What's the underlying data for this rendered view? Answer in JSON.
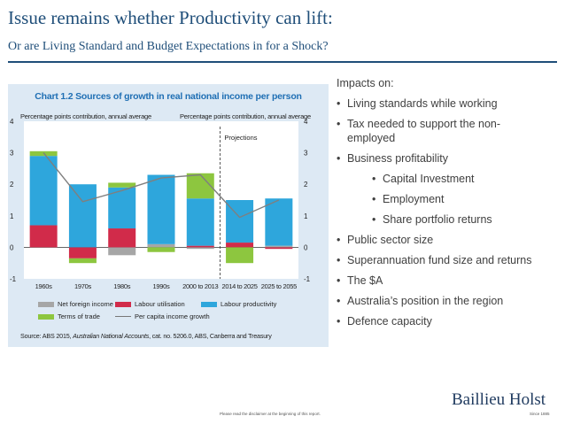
{
  "slide": {
    "title": "Issue remains whether Productivity can lift:",
    "subtitle": "Or are Living Standard and Budget Expectations in for a Shock?",
    "footer_note": "Please read the disclaimer at the beginning of this report.",
    "logo_text": "Baillieu Holst",
    "logo_since": "Since 1885"
  },
  "impacts": {
    "heading": "Impacts on:",
    "items": [
      {
        "text": "Living standards while working",
        "level": 1
      },
      {
        "text": "Tax needed to support the non-",
        "level": 1
      },
      {
        "text": "employed",
        "level": 1,
        "continuation": true
      },
      {
        "text": "Business profitability",
        "level": 1
      },
      {
        "text": "Capital Investment",
        "level": 2
      },
      {
        "text": "Employment",
        "level": 2
      },
      {
        "text": "Share portfolio returns",
        "level": 2
      },
      {
        "text": "Public sector size",
        "level": 1
      },
      {
        "text": "Superannuation fund size and returns",
        "level": 1
      },
      {
        "text": "The $A",
        "level": 1
      },
      {
        "text": "Australia’s position in the region",
        "level": 1
      },
      {
        "text": "Defence capacity",
        "level": 1
      }
    ]
  },
  "chart_data": {
    "type": "bar",
    "stacked": true,
    "title": "Chart 1.2 Sources of growth in real national income per person",
    "ylabel_left": "Percentage points contribution, annual average",
    "ylabel_right": "Percentage points contribution, annual average",
    "annotation": "Projections",
    "ylim": [
      -1,
      4
    ],
    "yticks": [
      -1,
      0,
      1,
      2,
      3,
      4
    ],
    "categories": [
      "1960s",
      "1970s",
      "1980s",
      "1990s",
      "2000 to 2013",
      "2014 to 2025",
      "2025 to 2055"
    ],
    "series": [
      {
        "name": "Net foreign income",
        "color": "#a6a6a6",
        "values": [
          0.0,
          0.0,
          -0.25,
          0.1,
          -0.05,
          0.0,
          0.05
        ]
      },
      {
        "name": "Labour utilisation",
        "color": "#d12b4a",
        "values": [
          0.7,
          -0.35,
          0.6,
          0.0,
          0.05,
          0.15,
          -0.05
        ]
      },
      {
        "name": "Labour productivity",
        "color": "#2ea6dc",
        "values": [
          2.2,
          2.0,
          1.3,
          2.2,
          1.5,
          1.35,
          1.5
        ]
      },
      {
        "name": "Terms of trade",
        "color": "#8dc63f",
        "values": [
          0.15,
          -0.15,
          0.15,
          -0.15,
          0.8,
          -0.5,
          0.0
        ]
      }
    ],
    "line": {
      "name": "Per capita income growth",
      "color": "#7f7f7f",
      "values": [
        3.0,
        1.45,
        1.8,
        2.2,
        2.3,
        0.95,
        1.5
      ]
    },
    "source_prefix": "Source: ABS 2015, ",
    "source_italic": "Australian National Accounts",
    "source_suffix": ", cat. no. 5206.0, ABS, Canberra and Treasury"
  }
}
